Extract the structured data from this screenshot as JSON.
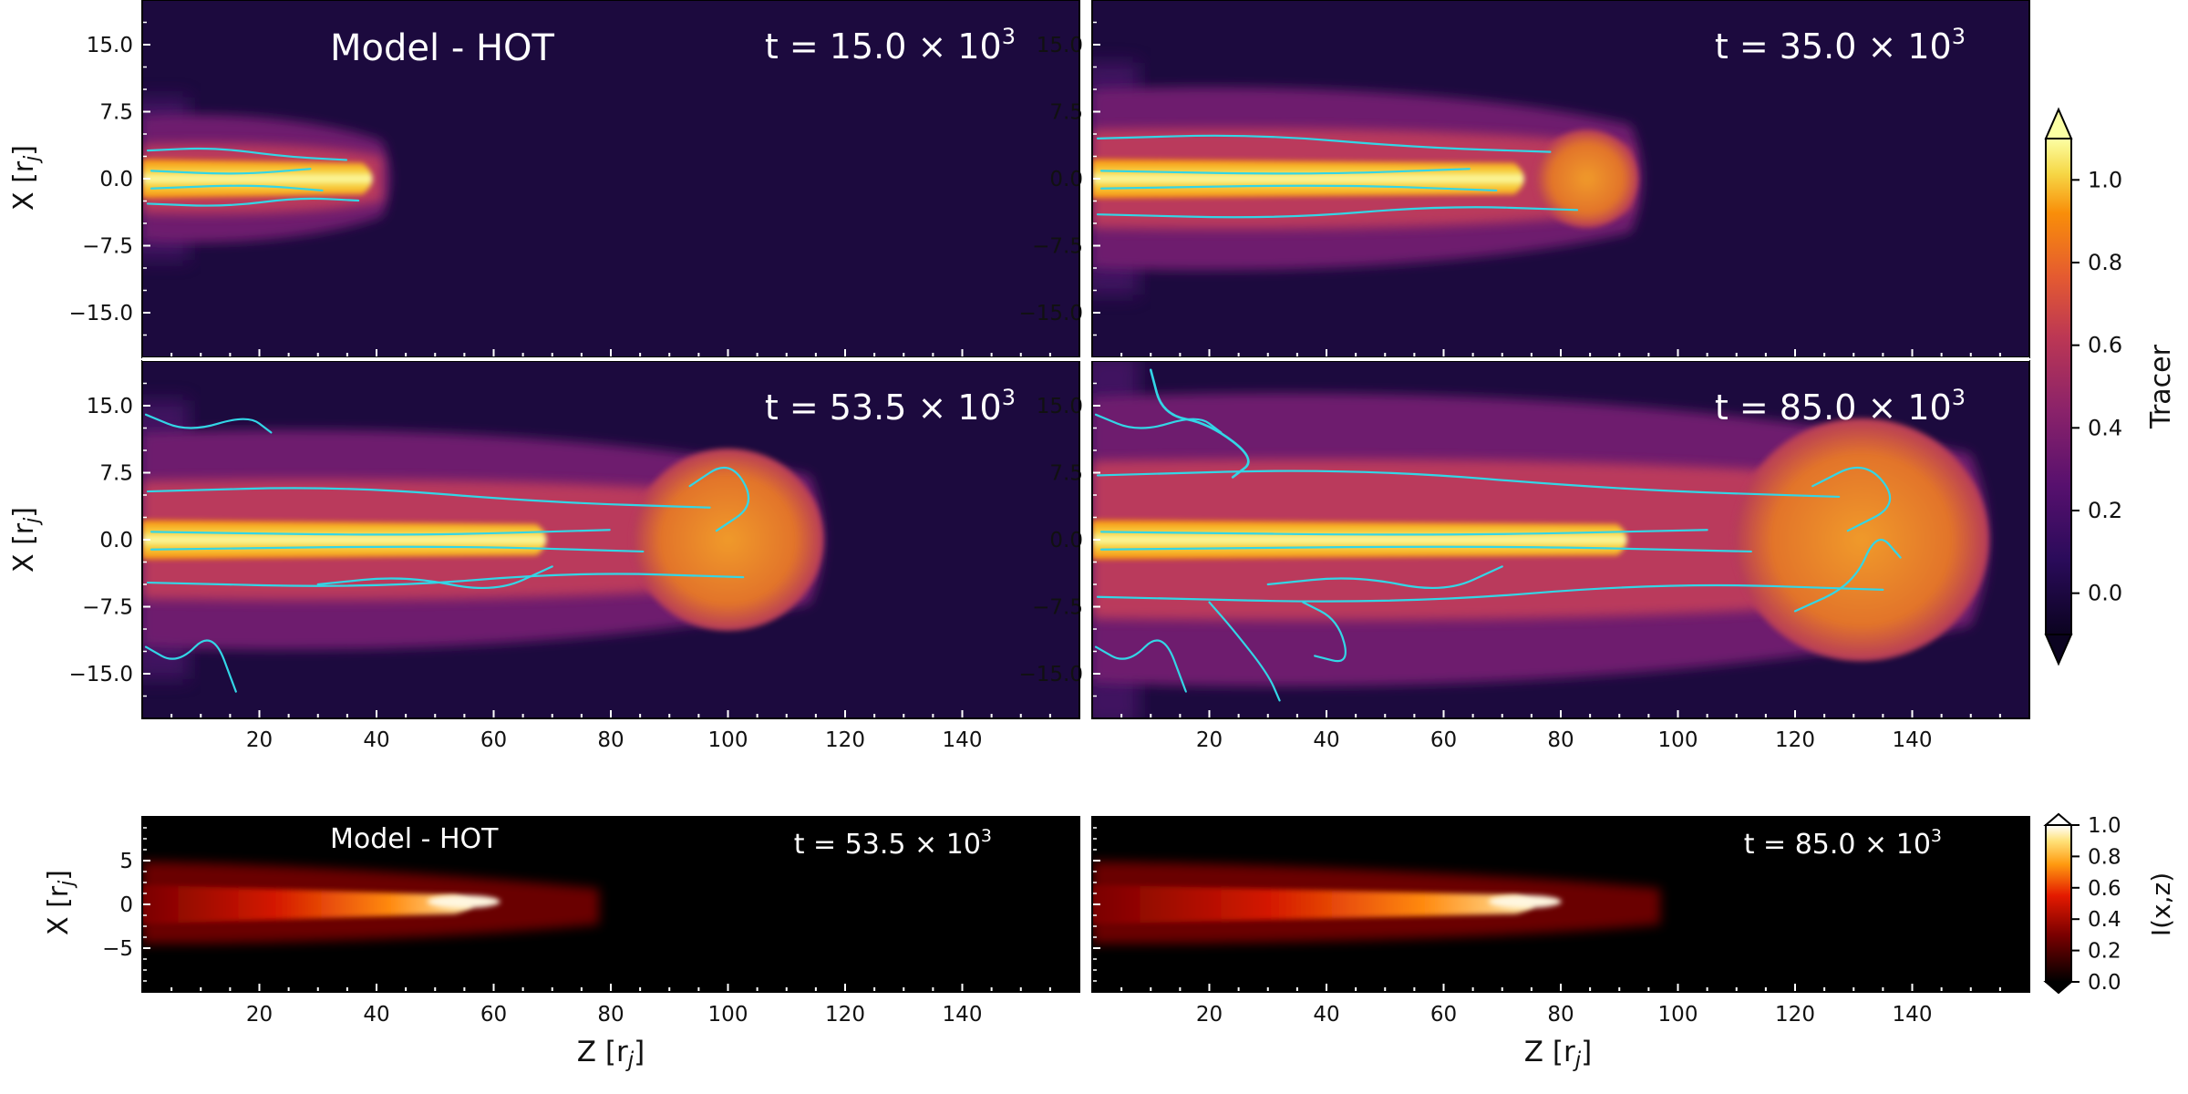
{
  "chart_data": [
    {
      "type": "heatmap",
      "quantity": "Tracer",
      "model_label": "Model - HOT",
      "xlabel": "Z [r_j]",
      "ylabel": "X [r_j]",
      "xlim": [
        0,
        160
      ],
      "ylim": [
        -20,
        20
      ],
      "xticks": [
        20,
        40,
        60,
        80,
        100,
        120,
        140
      ],
      "yticks": [
        15.0,
        7.5,
        0.0,
        -7.5,
        -15.0
      ],
      "ytick_labels": [
        "15.0",
        "7.5",
        "0.0",
        "−7.5",
        "−15.0"
      ],
      "colormap": "inferno",
      "streamline_color": "#33d6e6",
      "colorbar": {
        "label": "Tracer",
        "ticks": [
          0.0,
          0.2,
          0.4,
          0.6,
          0.8,
          1.0
        ],
        "tick_labels": [
          "0.0",
          "0.2",
          "0.4",
          "0.6",
          "0.8",
          "1.0"
        ],
        "extend": "both"
      },
      "panels": [
        {
          "time_label": "t = 15.0 × 10",
          "time_exp": "3",
          "time": 15000,
          "jet_length_rj": 41,
          "cocoon_width_rj": 7
        },
        {
          "time_label": "t = 35.0 × 10",
          "time_exp": "3",
          "time": 35000,
          "jet_length_rj": 92,
          "cocoon_width_rj": 10
        },
        {
          "time_label": "t = 53.5 × 10",
          "time_exp": "3",
          "time": 53500,
          "jet_length_rj": 114,
          "cocoon_width_rj": 12
        },
        {
          "time_label": "t = 85.0 × 10",
          "time_exp": "3",
          "time": 85000,
          "jet_length_rj": 150,
          "cocoon_width_rj": 16
        }
      ]
    },
    {
      "type": "heatmap",
      "quantity": "I(x,z)",
      "model_label": "Model - HOT",
      "xlabel": "Z [r_j]",
      "ylabel": "X [r_j]",
      "xlim": [
        0,
        160
      ],
      "ylim": [
        -10,
        10
      ],
      "xticks": [
        20,
        40,
        60,
        80,
        100,
        120,
        140
      ],
      "yticks": [
        5,
        0,
        -5
      ],
      "ytick_labels": [
        "5",
        "0",
        "−5"
      ],
      "colormap": "hot",
      "colorbar": {
        "label": "I(x,z)",
        "ticks": [
          0.0,
          0.2,
          0.4,
          0.6,
          0.8,
          1.0
        ],
        "tick_labels": [
          "0.0",
          "0.2",
          "0.4",
          "0.6",
          "0.8",
          "1.0"
        ],
        "extend": "both"
      },
      "panels": [
        {
          "time_label": "t = 53.5 × 10",
          "time_exp": "3",
          "time": 53500,
          "peak_z_rj": 58
        },
        {
          "time_label": "t = 85.0 × 10",
          "time_exp": "3",
          "time": 85000,
          "peak_z_rj": 77
        }
      ]
    }
  ]
}
